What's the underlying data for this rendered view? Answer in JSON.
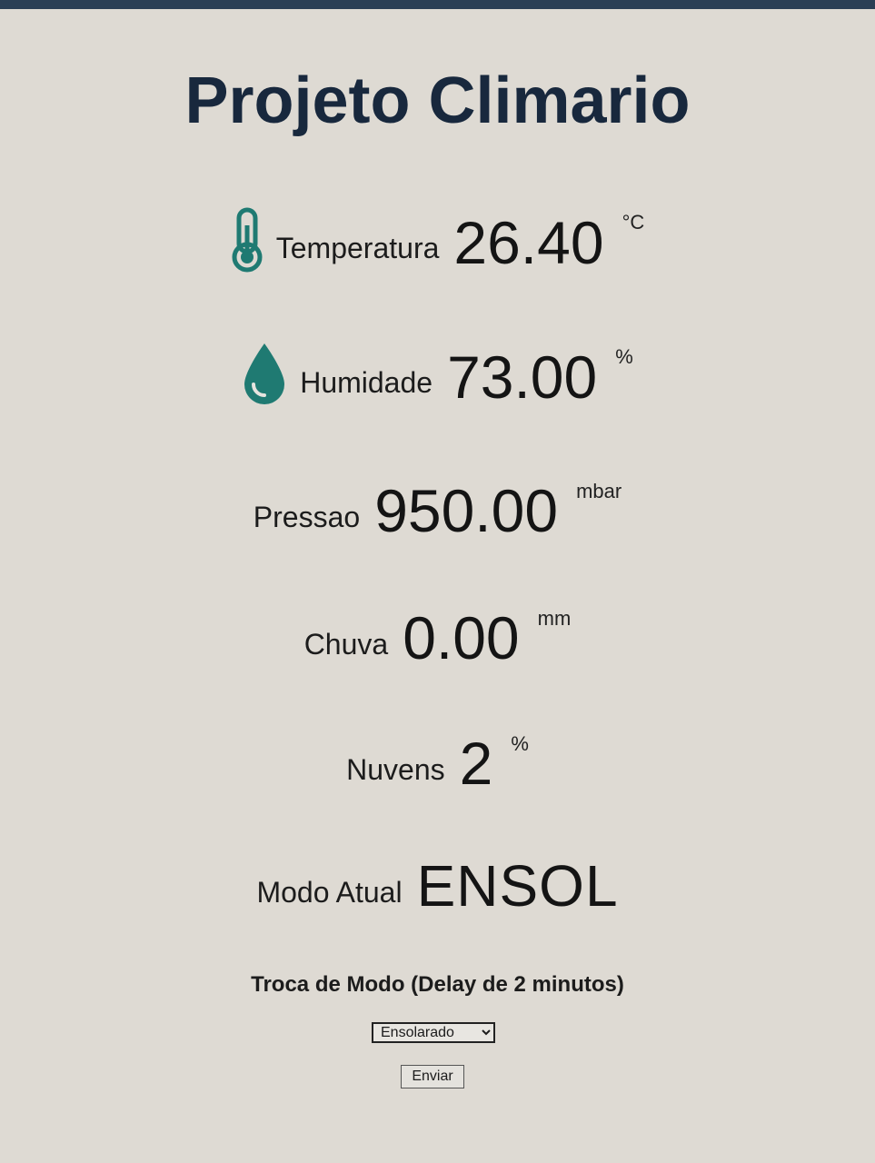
{
  "title": "Projeto Climario",
  "readings": {
    "temperature": {
      "label": "Temperatura",
      "value": "26.40",
      "unit": "°C",
      "icon": "thermometer-icon"
    },
    "humidity": {
      "label": "Humidade",
      "value": "73.00",
      "unit": "%",
      "icon": "water-drop-icon"
    },
    "pressure": {
      "label": "Pressao",
      "value": "950.00",
      "unit": "mbar"
    },
    "rain": {
      "label": "Chuva",
      "value": "0.00",
      "unit": "mm"
    },
    "clouds": {
      "label": "Nuvens",
      "value": "2",
      "unit": "%"
    }
  },
  "mode": {
    "label": "Modo Atual",
    "value": "ENSOL"
  },
  "form": {
    "title": "Troca de Modo (Delay de 2 minutos)",
    "selected_option": "Ensolarado",
    "submit_label": "Enviar"
  },
  "colors": {
    "icon_accent": "#1f7a72",
    "title": "#18283d",
    "background": "#dedad3"
  }
}
